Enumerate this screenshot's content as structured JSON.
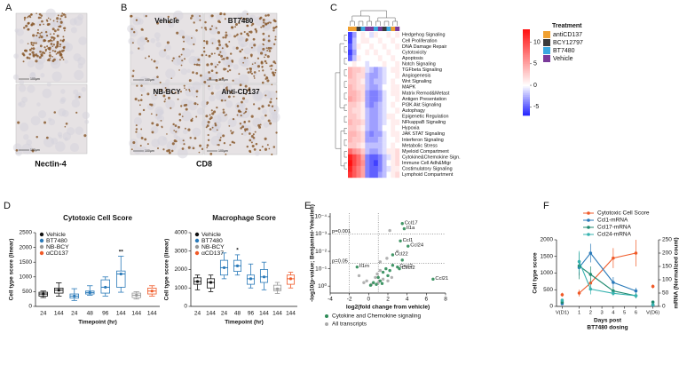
{
  "figure": {
    "panel_labels": [
      "A",
      "B",
      "C",
      "D",
      "E",
      "F"
    ],
    "scale_bar": "100µm",
    "a": {
      "caption": "Nectin-4"
    },
    "b": {
      "caption": "CD8",
      "tiles": [
        "Vehicle",
        "BT7480",
        "NB-BCY",
        "Anti-CD137"
      ]
    }
  },
  "chart_data": [
    {
      "type": "heatmap",
      "rows": [
        "Hedgehog Signaling",
        "Cell Proliferation",
        "DNA Damage Repair",
        "Cytotoxicity",
        "Apoptosis",
        "Notch Signaling",
        "TGFbeta Signaling",
        "Angiogenesis",
        "Wnt Signaling",
        "MAPK",
        "Matrix Remod&Metast",
        "Antigen Presentation",
        "PI3K Akt Signaling",
        "Autophagy",
        "Epigenetic Regulation",
        "NFkappaB Signaling",
        "Hypoxia",
        "JAK STAT Signaling",
        "Interferon Signaling",
        "Metabolic Stress",
        "Myeloid Compartment",
        "Cytokine&Chemokine Sign.",
        "Immune Cell Adh&Migr",
        "Costimulatory Signaling",
        "Lymphoid Compartment"
      ],
      "values": [
        [
          -6,
          -3,
          0,
          1,
          0,
          -1,
          1,
          0,
          0,
          1,
          0,
          1
        ],
        [
          -6,
          -2,
          0,
          1,
          1,
          0,
          0,
          1,
          0,
          0,
          1,
          0
        ],
        [
          -5,
          -2,
          1,
          0,
          0,
          1,
          0,
          0,
          1,
          0,
          0,
          1
        ],
        [
          -6,
          -3,
          0,
          0,
          1,
          0,
          1,
          0,
          0,
          1,
          0,
          0
        ],
        [
          -5,
          -2,
          1,
          0,
          0,
          0,
          0,
          1,
          0,
          0,
          1,
          0
        ],
        [
          0,
          1,
          0,
          0,
          -1,
          0,
          0,
          0,
          1,
          0,
          0,
          1
        ],
        [
          4,
          3,
          3,
          2,
          -1,
          -2,
          -3,
          -2,
          -1,
          0,
          1,
          1
        ],
        [
          4,
          3,
          2,
          2,
          -2,
          -3,
          -3,
          -2,
          -1,
          0,
          0,
          1
        ],
        [
          3,
          3,
          2,
          1,
          -2,
          -3,
          -2,
          -2,
          -1,
          0,
          1,
          0
        ],
        [
          4,
          3,
          2,
          2,
          -2,
          -3,
          -3,
          -2,
          0,
          0,
          1,
          1
        ],
        [
          4,
          4,
          3,
          2,
          -3,
          -4,
          -4,
          -3,
          -1,
          0,
          1,
          1
        ],
        [
          5,
          4,
          3,
          2,
          -3,
          -4,
          -4,
          -3,
          -1,
          0,
          0,
          1
        ],
        [
          3,
          3,
          2,
          1,
          -3,
          -4,
          -3,
          -2,
          -1,
          0,
          1,
          0
        ],
        [
          3,
          2,
          2,
          1,
          -2,
          -3,
          -3,
          -2,
          -1,
          0,
          0,
          1
        ],
        [
          3,
          3,
          2,
          1,
          -2,
          -3,
          -3,
          -2,
          -1,
          1,
          1,
          0
        ],
        [
          4,
          3,
          3,
          2,
          -2,
          -3,
          -3,
          -2,
          -1,
          0,
          1,
          1
        ],
        [
          3,
          3,
          2,
          1,
          -2,
          -3,
          -3,
          -2,
          0,
          0,
          1,
          0
        ],
        [
          4,
          4,
          3,
          2,
          -3,
          -4,
          -3,
          -3,
          -1,
          0,
          1,
          1
        ],
        [
          4,
          3,
          3,
          2,
          -3,
          -3,
          -3,
          -2,
          -1,
          0,
          0,
          1
        ],
        [
          3,
          3,
          2,
          1,
          -2,
          -2,
          -2,
          -2,
          -1,
          0,
          1,
          0
        ],
        [
          8,
          6,
          5,
          3,
          -2,
          -3,
          -3,
          -2,
          -1,
          1,
          1,
          2
        ],
        [
          12,
          10,
          8,
          5,
          -4,
          -5,
          -5,
          -4,
          -2,
          -1,
          1,
          2
        ],
        [
          13,
          10,
          8,
          6,
          -4,
          -5,
          -6,
          -4,
          -2,
          0,
          1,
          2
        ],
        [
          12,
          9,
          7,
          5,
          -4,
          -5,
          -5,
          -4,
          -2,
          -1,
          1,
          1
        ],
        [
          11,
          9,
          7,
          5,
          -4,
          -5,
          -5,
          -3,
          -2,
          0,
          1,
          2
        ]
      ],
      "column_treatments": [
        "antiCD137",
        "antiCD137",
        "BCY12797",
        "BT7480",
        "Vehicle",
        "Vehicle",
        "BT7480",
        "Vehicle",
        "BCY12797",
        "BT7480",
        "antiCD137",
        "Vehicle"
      ],
      "legend_title": "Treatment",
      "treatments": [
        {
          "name": "antiCD137",
          "color": "#f0a030"
        },
        {
          "name": "BCY12797",
          "color": "#3a3a3a"
        },
        {
          "name": "BT7480",
          "color": "#3aa8e0"
        },
        {
          "name": "Vehicle",
          "color": "#7a3a9a"
        }
      ],
      "clim": [
        -7,
        13
      ],
      "colorbar_ticks": [
        10,
        5,
        0,
        -5
      ],
      "low_color": "#2020ff",
      "high_color": "#ff1010"
    },
    {
      "type": "box",
      "title": "Cytotoxic Cell Score",
      "xlabel": "Timepoint (hr)",
      "ylabel": "Cell type score (linear)",
      "categories": [
        "24",
        "144",
        "24",
        "48",
        "96",
        "144",
        "144",
        "144"
      ],
      "boxes": [
        {
          "min": 300,
          "q1": 350,
          "median": 420,
          "q3": 480,
          "max": 520
        },
        {
          "min": 350,
          "q1": 450,
          "median": 550,
          "q3": 620,
          "max": 800
        },
        {
          "min": 200,
          "q1": 280,
          "median": 350,
          "q3": 420,
          "max": 600
        },
        {
          "min": 380,
          "q1": 420,
          "median": 470,
          "q3": 520,
          "max": 700
        },
        {
          "min": 350,
          "q1": 450,
          "median": 650,
          "q3": 900,
          "max": 1000
        },
        {
          "min": 480,
          "q1": 650,
          "median": 1100,
          "q3": 1200,
          "max": 1700
        },
        {
          "min": 250,
          "q1": 300,
          "median": 380,
          "q3": 450,
          "max": 500
        },
        {
          "min": 350,
          "q1": 420,
          "median": 520,
          "q3": 620,
          "max": 700
        }
      ],
      "box_colors": [
        "#111111",
        "#111111",
        "#2a7ab9",
        "#2a7ab9",
        "#2a7ab9",
        "#2a7ab9",
        "#999999",
        "#f05a28"
      ],
      "significance": [
        null,
        null,
        null,
        null,
        null,
        "**",
        null,
        null
      ],
      "legend": [
        {
          "name": "Vehicle",
          "color": "#111111"
        },
        {
          "name": "BT7480",
          "color": "#2a7ab9"
        },
        {
          "name": "NB-BCY",
          "color": "#999999"
        },
        {
          "name": "αCD137",
          "color": "#f05a28"
        }
      ],
      "ylim": [
        0,
        2500
      ],
      "yticks": [
        0,
        500,
        1000,
        1500,
        2000,
        2500
      ]
    },
    {
      "type": "box",
      "title": "Macrophage Score",
      "xlabel": "Timepoint (hr)",
      "ylabel": "Cell type score (linear)",
      "categories": [
        "24",
        "144",
        "24",
        "48",
        "96",
        "144",
        "144",
        "144"
      ],
      "boxes": [
        {
          "min": 900,
          "q1": 1200,
          "median": 1350,
          "q3": 1550,
          "max": 1700
        },
        {
          "min": 800,
          "q1": 1000,
          "median": 1300,
          "q3": 1500,
          "max": 1700
        },
        {
          "min": 1500,
          "q1": 1700,
          "median": 2100,
          "q3": 2500,
          "max": 2900
        },
        {
          "min": 1700,
          "q1": 1900,
          "median": 2200,
          "q3": 2500,
          "max": 2800
        },
        {
          "min": 1000,
          "q1": 1200,
          "median": 1500,
          "q3": 1700,
          "max": 2300
        },
        {
          "min": 900,
          "q1": 1300,
          "median": 1600,
          "q3": 2000,
          "max": 2400
        },
        {
          "min": 700,
          "q1": 850,
          "median": 950,
          "q3": 1150,
          "max": 1300
        },
        {
          "min": 1000,
          "q1": 1200,
          "median": 1500,
          "q3": 1700,
          "max": 1850
        }
      ],
      "box_colors": [
        "#111111",
        "#111111",
        "#2a7ab9",
        "#2a7ab9",
        "#2a7ab9",
        "#2a7ab9",
        "#999999",
        "#f05a28"
      ],
      "significance": [
        null,
        null,
        null,
        "*",
        null,
        null,
        null,
        null
      ],
      "legend": [
        {
          "name": "Vehicle",
          "color": "#111111"
        },
        {
          "name": "BT7480",
          "color": "#2a7ab9"
        },
        {
          "name": "NB-BCY",
          "color": "#999999"
        },
        {
          "name": "αCD137",
          "color": "#f05a28"
        }
      ],
      "ylim": [
        0,
        4000
      ],
      "yticks": [
        0,
        1000,
        2000,
        3000,
        4000
      ]
    },
    {
      "type": "scatter",
      "xlabel": "log2(fold change from vehicle)",
      "ylabel": "-log10(p-value; Benjamini-Yekutieli)",
      "xlim": [
        -4,
        8
      ],
      "xticks": [
        -4,
        -2,
        0,
        2,
        4,
        6,
        8
      ],
      "ylim": [
        -0.4,
        4.2
      ],
      "yticks": [
        {
          "value": 0,
          "label": "10⁰"
        },
        {
          "value": 1,
          "label": "10⁻¹"
        },
        {
          "value": 2,
          "label": "10⁻²"
        },
        {
          "value": 3,
          "label": "10⁻³"
        },
        {
          "value": 4,
          "label": "10⁻⁴"
        }
      ],
      "vlines": [
        -2,
        1
      ],
      "hlines": [
        {
          "value": 3,
          "label": "p=0.001"
        },
        {
          "value": 1.3,
          "label": "p=0.05"
        }
      ],
      "series": [
        {
          "name": "All transcripts",
          "color": "#aaaaaa",
          "x": [
            0.3,
            -0.5,
            1.0,
            1.5,
            2.0,
            -1,
            0.7,
            1.2,
            2.4,
            1.9,
            2.2,
            1.2,
            0.9,
            -0.2,
            3.0
          ],
          "values": [
            0.1,
            0.2,
            0.2,
            0.4,
            0.3,
            0.6,
            0.5,
            0.9,
            0.5,
            1.6,
            3.2,
            1.4,
            0.7,
            0.3,
            2.0
          ],
          "labels": [
            null,
            null,
            null,
            null,
            null,
            null,
            null,
            null,
            null,
            null,
            null,
            null,
            null,
            null,
            null
          ]
        },
        {
          "name": "Cytokine and Chemokine signaling",
          "color": "#2e8b57",
          "x": [
            3.5,
            3.7,
            3.3,
            4.1,
            2.5,
            3.0,
            3.2,
            6.7,
            -1.2,
            0.5,
            1.0,
            1.5,
            2.0,
            1.2,
            0.8,
            2.5,
            1.8,
            0.2,
            1.4,
            2.2,
            3.5
          ],
          "values": [
            3.6,
            3.3,
            2.6,
            2.3,
            1.8,
            1.1,
            1.0,
            0.4,
            1.1,
            0.2,
            0.5,
            0.8,
            0.6,
            0.3,
            0.1,
            1.2,
            1.0,
            0.05,
            0.15,
            0.9,
            1.5
          ],
          "labels": [
            "Ccl17",
            "Il1a",
            "Ccl1",
            "Ccl24",
            "Ccl22",
            "Cxcl2",
            "Cxcr2",
            "Ccl21",
            "Il1rn",
            null,
            null,
            null,
            null,
            null,
            null,
            null,
            null,
            null,
            null,
            null,
            null
          ]
        }
      ]
    },
    {
      "type": "line",
      "xlabel": [
        "Days post",
        "BT7480 dosing"
      ],
      "ylabel": "Cell type score",
      "y2label": "mRNA (Normalized count)",
      "xlim": [
        -1,
        8
      ],
      "xticks": [
        {
          "value": -0.5,
          "label": "V(D1)"
        },
        1,
        2,
        3,
        4,
        5,
        6,
        {
          "value": 7.5,
          "label": "V(D6)"
        }
      ],
      "ylim": [
        0,
        2000
      ],
      "yticks": [
        0,
        500,
        1000,
        1500,
        2000
      ],
      "y2lim": [
        0,
        250
      ],
      "y2ticks": [
        0,
        50,
        100,
        150,
        200,
        250
      ],
      "x": [
        -0.5,
        null,
        1,
        2,
        4,
        6,
        null,
        7.5
      ],
      "series": [
        {
          "name": "Cytotoxic Cell Score",
          "color": "#f05a28",
          "values": [
            350,
            null,
            400,
            700,
            1450,
            1600,
            null,
            600
          ],
          "errors": [
            60,
            null,
            100,
            150,
            300,
            400,
            null,
            60
          ]
        },
        {
          "name": "Ccl1-mRNA",
          "color": "#2a7ab9",
          "axis": "y2",
          "values": [
            10,
            null,
            146,
            200,
            90,
            58,
            null,
            5
          ],
          "errors": [
            4,
            null,
            30,
            35,
            20,
            12,
            null,
            3
          ]
        },
        {
          "name": "Ccl17-mRNA",
          "color": "#1f8a70",
          "axis": "y2",
          "values": [
            16,
            null,
            152,
            120,
            58,
            40,
            null,
            16
          ],
          "errors": [
            5,
            null,
            50,
            30,
            15,
            10,
            null,
            5
          ]
        },
        {
          "name": "Ccl24-mRNA",
          "color": "#38b3b0",
          "axis": "y2",
          "values": [
            23,
            null,
            168,
            65,
            49,
            40,
            null,
            6
          ],
          "errors": [
            5,
            null,
            40,
            20,
            10,
            8,
            null,
            3
          ]
        }
      ]
    }
  ]
}
